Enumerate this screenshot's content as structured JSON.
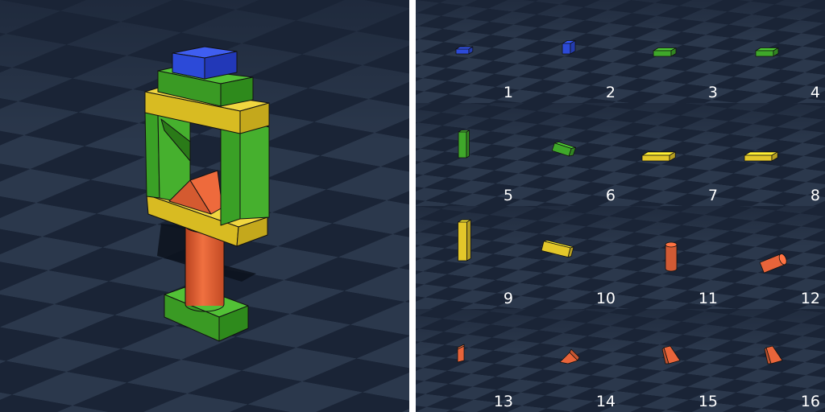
{
  "scene": {
    "title": "",
    "floor_colors": {
      "dark": "#1a2436",
      "light": "#2b384c"
    },
    "block_colors": {
      "blue": "#2c4ad8",
      "green": "#3fa82a",
      "yellow": "#e3c72a",
      "orange": "#e8643a",
      "edge": "#111111"
    }
  },
  "palette": {
    "items": [
      {
        "number": "1",
        "color": "blue",
        "shape": "flat-cuboid"
      },
      {
        "number": "2",
        "color": "blue",
        "shape": "cube"
      },
      {
        "number": "3",
        "color": "green",
        "shape": "slab"
      },
      {
        "number": "4",
        "color": "green",
        "shape": "slab"
      },
      {
        "number": "5",
        "color": "green",
        "shape": "upright-slab"
      },
      {
        "number": "6",
        "color": "green",
        "shape": "side-slab"
      },
      {
        "number": "7",
        "color": "yellow",
        "shape": "long-beam"
      },
      {
        "number": "8",
        "color": "yellow",
        "shape": "long-beam"
      },
      {
        "number": "9",
        "color": "yellow",
        "shape": "upright-beam"
      },
      {
        "number": "10",
        "color": "yellow",
        "shape": "side-beam"
      },
      {
        "number": "11",
        "color": "orange",
        "shape": "upright-cylinder"
      },
      {
        "number": "12",
        "color": "orange",
        "shape": "lying-cylinder"
      },
      {
        "number": "13",
        "color": "orange",
        "shape": "small-wedge"
      },
      {
        "number": "14",
        "color": "orange",
        "shape": "triangular-prism"
      },
      {
        "number": "15",
        "color": "orange",
        "shape": "wedge"
      },
      {
        "number": "16",
        "color": "orange",
        "shape": "wedge"
      }
    ]
  }
}
